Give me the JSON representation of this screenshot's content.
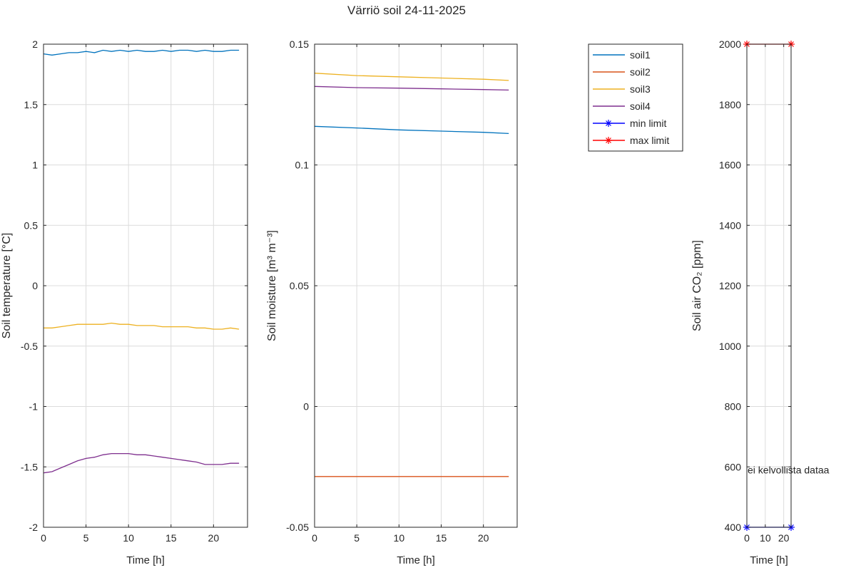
{
  "figure": {
    "title": "Värriö soil 24-11-2025"
  },
  "legend": {
    "entries": [
      {
        "label": "soil1",
        "color": "#0072BD",
        "marker": false
      },
      {
        "label": "soil2",
        "color": "#D95319",
        "marker": false
      },
      {
        "label": "soil3",
        "color": "#EDB120",
        "marker": false
      },
      {
        "label": "soil4",
        "color": "#7E2F8E",
        "marker": false
      },
      {
        "label": "min limit",
        "color": "#0000FF",
        "marker": true
      },
      {
        "label": "max limit",
        "color": "#FF0000",
        "marker": true
      }
    ]
  },
  "chart_data": [
    {
      "type": "line",
      "xlabel": "Time [h]",
      "ylabel": "Soil temperature [°C]",
      "xlim": [
        0,
        24
      ],
      "ylim": [
        -2,
        2
      ],
      "xticks": [
        0,
        5,
        10,
        15,
        20
      ],
      "yticks": [
        -2,
        -1.5,
        -1,
        -0.5,
        0,
        0.5,
        1,
        1.5,
        2
      ],
      "grid": true,
      "series": [
        {
          "name": "soil1",
          "color": "#0072BD",
          "x": [
            0,
            1,
            2,
            3,
            4,
            5,
            6,
            7,
            8,
            9,
            10,
            11,
            12,
            13,
            14,
            15,
            16,
            17,
            18,
            19,
            20,
            21,
            22,
            23
          ],
          "y": [
            1.92,
            1.91,
            1.92,
            1.93,
            1.93,
            1.94,
            1.93,
            1.95,
            1.94,
            1.95,
            1.94,
            1.95,
            1.94,
            1.94,
            1.95,
            1.94,
            1.95,
            1.95,
            1.94,
            1.95,
            1.94,
            1.94,
            1.95,
            1.95
          ]
        },
        {
          "name": "soil3",
          "color": "#EDB120",
          "x": [
            0,
            1,
            2,
            3,
            4,
            5,
            6,
            7,
            8,
            9,
            10,
            11,
            12,
            13,
            14,
            15,
            16,
            17,
            18,
            19,
            20,
            21,
            22,
            23
          ],
          "y": [
            -0.35,
            -0.35,
            -0.34,
            -0.33,
            -0.32,
            -0.32,
            -0.32,
            -0.32,
            -0.31,
            -0.32,
            -0.32,
            -0.33,
            -0.33,
            -0.33,
            -0.34,
            -0.34,
            -0.34,
            -0.34,
            -0.35,
            -0.35,
            -0.36,
            -0.36,
            -0.35,
            -0.36
          ]
        },
        {
          "name": "soil4",
          "color": "#7E2F8E",
          "x": [
            0,
            1,
            2,
            3,
            4,
            5,
            6,
            7,
            8,
            9,
            10,
            11,
            12,
            13,
            14,
            15,
            16,
            17,
            18,
            19,
            20,
            21,
            22,
            23
          ],
          "y": [
            -1.55,
            -1.54,
            -1.51,
            -1.48,
            -1.45,
            -1.43,
            -1.42,
            -1.4,
            -1.39,
            -1.39,
            -1.39,
            -1.4,
            -1.4,
            -1.41,
            -1.42,
            -1.43,
            -1.44,
            -1.45,
            -1.46,
            -1.48,
            -1.48,
            -1.48,
            -1.47,
            -1.47
          ]
        }
      ]
    },
    {
      "type": "line",
      "xlabel": "Time [h]",
      "ylabel": "Soil moisture [m³ m⁻³]",
      "xlim": [
        0,
        24
      ],
      "ylim": [
        -0.05,
        0.15
      ],
      "xticks": [
        0,
        5,
        10,
        15,
        20
      ],
      "yticks": [
        -0.05,
        0,
        0.05,
        0.1,
        0.15
      ],
      "grid": true,
      "series": [
        {
          "name": "soil1",
          "color": "#0072BD",
          "x": [
            0,
            5,
            10,
            15,
            20,
            23
          ],
          "y": [
            0.116,
            0.1153,
            0.1145,
            0.114,
            0.1135,
            0.113
          ]
        },
        {
          "name": "soil2",
          "color": "#D95319",
          "x": [
            0,
            5,
            10,
            15,
            20,
            23
          ],
          "y": [
            -0.029,
            -0.029,
            -0.029,
            -0.029,
            -0.029,
            -0.029
          ]
        },
        {
          "name": "soil3",
          "color": "#EDB120",
          "x": [
            0,
            5,
            10,
            15,
            20,
            23
          ],
          "y": [
            0.138,
            0.137,
            0.1365,
            0.136,
            0.1355,
            0.135
          ]
        },
        {
          "name": "soil4",
          "color": "#7E2F8E",
          "x": [
            0,
            5,
            10,
            15,
            20,
            23
          ],
          "y": [
            0.1325,
            0.132,
            0.1318,
            0.1315,
            0.1312,
            0.131
          ]
        }
      ]
    },
    {
      "type": "line",
      "xlabel": "Time [h]",
      "ylabel": "Soil air CO₂ [ppm]",
      "xlim": [
        0,
        24
      ],
      "ylim": [
        400,
        2000
      ],
      "xticks": [
        0,
        10,
        20
      ],
      "yticks": [
        400,
        600,
        800,
        1000,
        1200,
        1400,
        1600,
        1800,
        2000
      ],
      "grid": true,
      "annotation": {
        "text": "ei kelvollista dataa",
        "x": 12,
        "y": 590
      },
      "series": [
        {
          "name": "min limit",
          "color": "#0000FF",
          "marker": "*",
          "x": [
            0,
            24
          ],
          "y": [
            400,
            400
          ]
        },
        {
          "name": "max limit",
          "color": "#FF0000",
          "marker": "*",
          "x": [
            0,
            24
          ],
          "y": [
            2000,
            2000
          ]
        }
      ]
    }
  ]
}
